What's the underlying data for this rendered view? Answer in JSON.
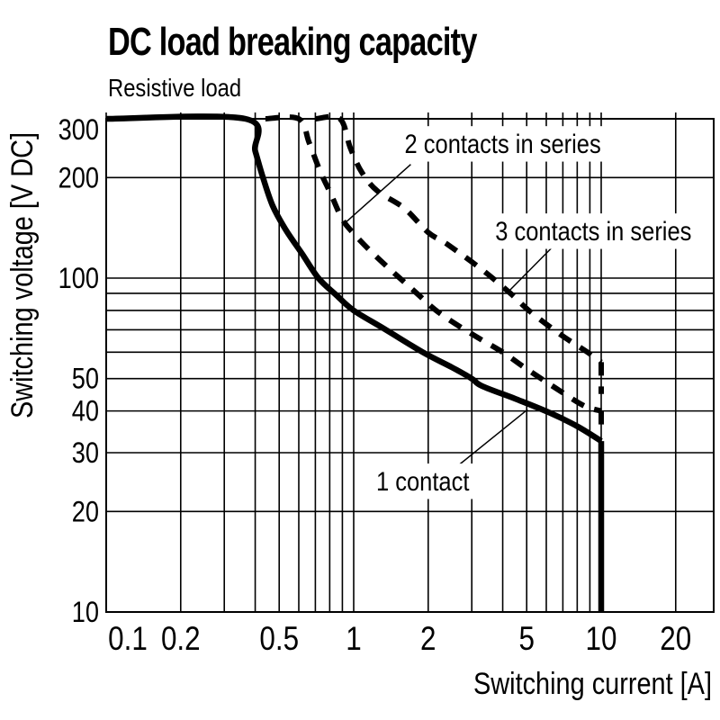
{
  "page": {
    "title": "DC load breaking capacity",
    "subtitle": "Resistive load"
  },
  "chart_data": {
    "type": "line",
    "title": "DC load breaking capacity",
    "subtitle": "Resistive load",
    "x_axis": {
      "label": "Switching current [A]",
      "scale": "log",
      "min": 0.1,
      "max": 28.5,
      "gridlines": [
        0.1,
        0.2,
        0.3,
        0.4,
        0.5,
        0.6,
        0.7,
        0.8,
        0.9,
        1,
        2,
        3,
        4,
        5,
        6,
        7,
        8,
        9,
        10,
        20
      ],
      "tick_labels": [
        {
          "value": 0.1,
          "text": "0.1",
          "dx": 24
        },
        {
          "value": 0.2,
          "text": "0.2"
        },
        {
          "value": 0.5,
          "text": "0.5"
        },
        {
          "value": 1,
          "text": "1"
        },
        {
          "value": 2,
          "text": "2"
        },
        {
          "value": 5,
          "text": "5"
        },
        {
          "value": 10,
          "text": "10"
        },
        {
          "value": 20,
          "text": "20"
        }
      ]
    },
    "y_axis": {
      "label": "Switching voltage [V DC]",
      "scale": "log",
      "min": 10,
      "max": 300,
      "gridlines": [
        10,
        20,
        30,
        40,
        50,
        60,
        70,
        80,
        90,
        100,
        200,
        300
      ],
      "tick_labels": [
        {
          "value": 10,
          "text": "10"
        },
        {
          "value": 20,
          "text": "20"
        },
        {
          "value": 30,
          "text": "30"
        },
        {
          "value": 40,
          "text": "40"
        },
        {
          "value": 50,
          "text": "50"
        },
        {
          "value": 100,
          "text": "100"
        },
        {
          "value": 200,
          "text": "200"
        },
        {
          "value": 300,
          "text": "300",
          "dy": 12
        }
      ]
    },
    "series": [
      {
        "name": "1 contact",
        "line_style": "solid",
        "points": [
          [
            0.1,
            300
          ],
          [
            0.365,
            300
          ],
          [
            0.4,
            240
          ],
          [
            0.43,
            200
          ],
          [
            0.47,
            165
          ],
          [
            0.53,
            140
          ],
          [
            0.62,
            118
          ],
          [
            0.72,
            100
          ],
          [
            0.85,
            89
          ],
          [
            1.0,
            80
          ],
          [
            1.35,
            70
          ],
          [
            1.9,
            60
          ],
          [
            2.5,
            54
          ],
          [
            3.0,
            50
          ],
          [
            3.3,
            47.5
          ],
          [
            4.5,
            43.5
          ],
          [
            6.2,
            39.5
          ],
          [
            8.0,
            36
          ],
          [
            10,
            32.5
          ]
        ],
        "drop": [
          [
            10,
            32.5
          ],
          [
            10,
            10
          ]
        ]
      },
      {
        "name": "2 contacts in series",
        "line_style": "dashed",
        "points": [
          [
            0.44,
            300
          ],
          [
            0.6,
            300
          ],
          [
            0.66,
            255
          ],
          [
            0.73,
            210
          ],
          [
            0.81,
            178
          ],
          [
            0.9,
            150
          ],
          [
            1.0,
            136
          ],
          [
            1.15,
            122
          ],
          [
            1.35,
            109
          ],
          [
            1.8,
            90
          ],
          [
            2.2,
            79
          ],
          [
            3.0,
            68
          ],
          [
            4.0,
            60
          ],
          [
            4.9,
            54
          ],
          [
            6.5,
            47
          ],
          [
            8.5,
            41.5
          ],
          [
            10,
            40
          ]
        ],
        "drop": [
          [
            10,
            40
          ],
          [
            10,
            35.5
          ]
        ]
      },
      {
        "name": "3 contacts in series",
        "line_style": "dashed",
        "points": [
          [
            0.7,
            300
          ],
          [
            0.88,
            300
          ],
          [
            0.97,
            245
          ],
          [
            1.08,
            207
          ],
          [
            1.25,
            182
          ],
          [
            1.6,
            162
          ],
          [
            2.0,
            137
          ],
          [
            2.4,
            126
          ],
          [
            3.3,
            106
          ],
          [
            4.3,
            90
          ],
          [
            5.1,
            80
          ],
          [
            6.8,
            68
          ],
          [
            8.8,
            60
          ],
          [
            10,
            56
          ]
        ],
        "drop": [
          [
            10,
            56
          ],
          [
            10,
            45
          ]
        ]
      }
    ],
    "annotations": [
      {
        "text": "2 contacts in series",
        "label_at": [
          4.0,
          252
        ],
        "pointer_from": [
          1.7,
          219
        ],
        "pointer_to": [
          0.92,
          146
        ]
      },
      {
        "text": "3 contacts in series",
        "label_at": [
          9.3,
          138
        ],
        "pointer_from": [
          6.5,
          126
        ],
        "pointer_to": [
          4.15,
          90
        ]
      },
      {
        "text": "1 contact",
        "label_at": [
          1.9,
          24.6
        ],
        "pointer_from": [
          2.57,
          27
        ],
        "pointer_to": [
          5.04,
          40.4
        ]
      }
    ],
    "colors": {
      "line": "#000000",
      "grid": "#000000",
      "background": "#ffffff"
    },
    "legend_position": "inline-annotations",
    "grid": true
  }
}
